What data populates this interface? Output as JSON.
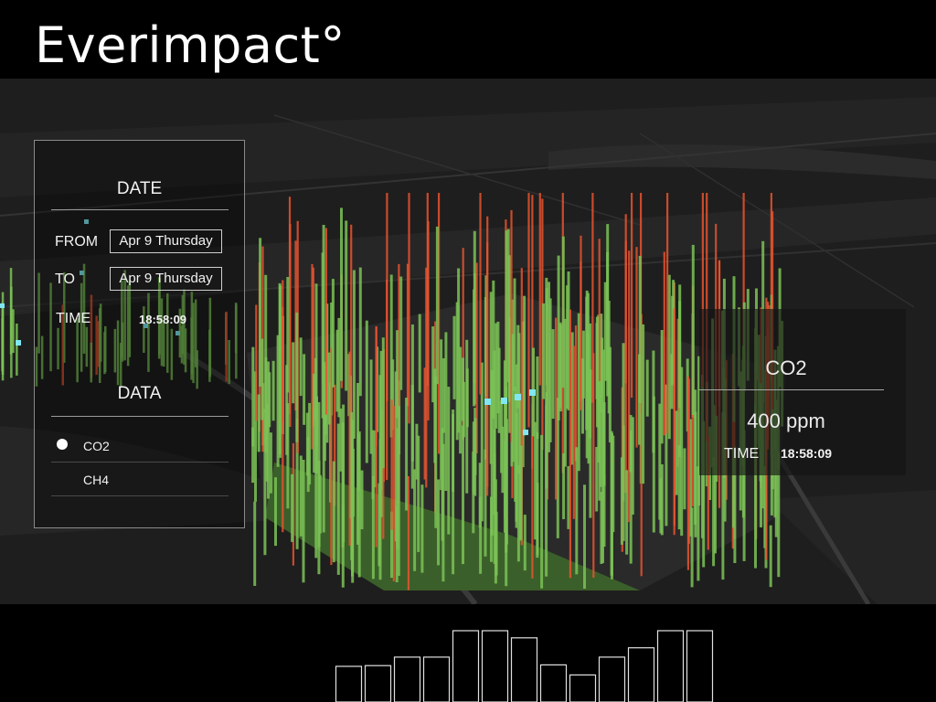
{
  "app": {
    "brand": "Everimpact°"
  },
  "control_panel": {
    "date_heading": "DATE",
    "from_label": "FROM",
    "from_value": "Apr 9 Thursday",
    "to_label": "TO",
    "to_value": "Apr 9 Thursday",
    "time_label": "TIME",
    "time_value": "18:58:09",
    "data_heading": "DATA",
    "data_items": [
      {
        "label": "CO2",
        "selected": true
      },
      {
        "label": "CH4",
        "selected": false
      }
    ]
  },
  "info_panel": {
    "pollutant": "CO2",
    "value": "400 ppm",
    "time_label": "TIME",
    "time_value": "18:58:09"
  },
  "histogram": {
    "relative_levels": [
      0.5,
      0.51,
      0.63,
      0.63,
      1.0,
      1.0,
      0.9,
      0.52,
      0.38,
      0.63,
      0.76,
      1.0,
      1.0
    ]
  },
  "colors": {
    "background": "#000000",
    "map": "#1f1f1f",
    "low_emission": "#7bc256",
    "high_emission": "#e8542f",
    "marker": "#7fe8f2"
  }
}
